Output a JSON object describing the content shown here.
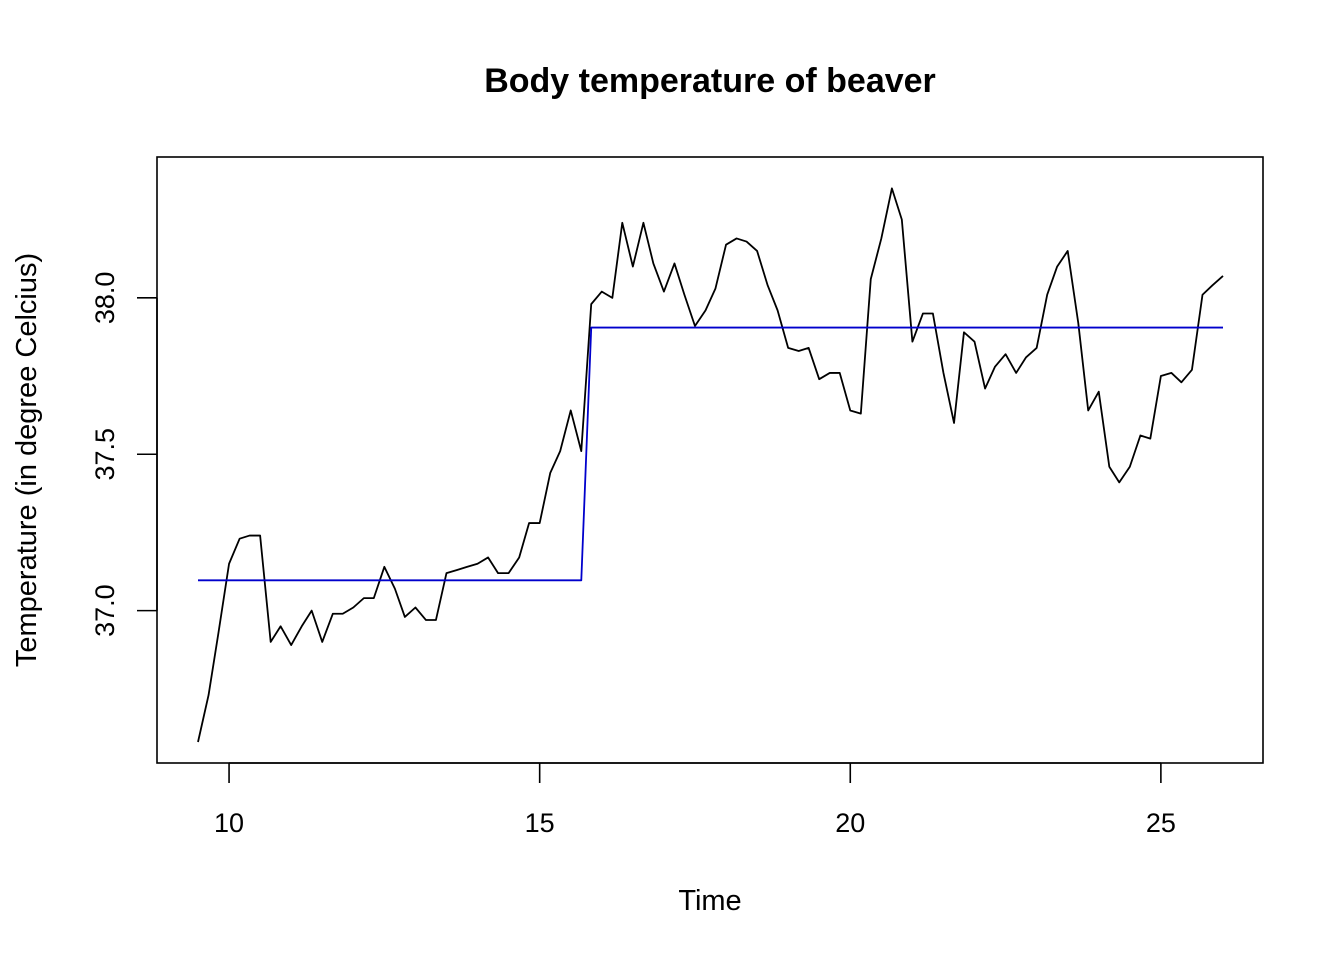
{
  "chart_data": {
    "type": "line",
    "title": "Body temperature of beaver",
    "xlabel": "Time",
    "ylabel": "Temperature (in degree Celcius)",
    "xlim": [
      9.5,
      26.0
    ],
    "ylim": [
      36.58,
      38.38
    ],
    "xticks": [
      10,
      15,
      20,
      25
    ],
    "xtick_labels": [
      "10",
      "15",
      "20",
      "25"
    ],
    "yticks": [
      37.0,
      37.5,
      38.0
    ],
    "ytick_labels": [
      "37.0",
      "37.5",
      "38.0"
    ],
    "grid": false,
    "legend": "none",
    "series": [
      {
        "color": "#000000",
        "x": [
          9.5,
          9.67,
          9.83,
          10.0,
          10.17,
          10.33,
          10.5,
          10.67,
          10.83,
          11.0,
          11.17,
          11.33,
          11.5,
          11.67,
          11.83,
          12.0,
          12.17,
          12.33,
          12.5,
          12.67,
          12.83,
          13.0,
          13.17,
          13.33,
          13.5,
          13.67,
          13.83,
          14.0,
          14.17,
          14.33,
          14.5,
          14.67,
          14.83,
          15.0,
          15.17,
          15.33,
          15.5,
          15.67,
          15.83,
          16.0,
          16.17,
          16.33,
          16.5,
          16.67,
          16.83,
          17.0,
          17.17,
          17.33,
          17.5,
          17.67,
          17.83,
          18.0,
          18.17,
          18.33,
          18.5,
          18.67,
          18.83,
          19.0,
          19.17,
          19.33,
          19.5,
          19.67,
          19.83,
          20.0,
          20.17,
          20.33,
          20.5,
          20.67,
          20.83,
          21.0,
          21.17,
          21.33,
          21.5,
          21.67,
          21.83,
          22.0,
          22.17,
          22.33,
          22.5,
          22.67,
          22.83,
          23.0,
          23.17,
          23.33,
          23.5,
          23.67,
          23.83,
          24.0,
          24.17,
          24.33,
          24.5,
          24.67,
          24.83,
          25.0,
          25.17,
          25.33,
          25.5,
          25.67,
          25.83,
          26.0
        ],
        "y": [
          36.58,
          36.73,
          36.93,
          37.15,
          37.23,
          37.24,
          37.24,
          36.9,
          36.95,
          36.89,
          36.95,
          37.0,
          36.9,
          36.99,
          36.99,
          37.01,
          37.04,
          37.04,
          37.14,
          37.07,
          36.98,
          37.01,
          36.97,
          36.97,
          37.12,
          37.13,
          37.14,
          37.15,
          37.17,
          37.12,
          37.12,
          37.17,
          37.28,
          37.28,
          37.44,
          37.51,
          37.64,
          37.51,
          37.98,
          38.02,
          38.0,
          38.24,
          38.1,
          38.24,
          38.11,
          38.02,
          38.11,
          38.01,
          37.91,
          37.96,
          38.03,
          38.17,
          38.19,
          38.18,
          38.15,
          38.04,
          37.96,
          37.84,
          37.83,
          37.84,
          37.74,
          37.76,
          37.76,
          37.64,
          37.63,
          38.06,
          38.19,
          38.35,
          38.25,
          37.86,
          37.95,
          37.95,
          37.76,
          37.6,
          37.89,
          37.86,
          37.71,
          37.78,
          37.82,
          37.76,
          37.81,
          37.84,
          38.01,
          38.1,
          38.15,
          37.92,
          37.64,
          37.7,
          37.46,
          37.41,
          37.46,
          37.56,
          37.55,
          37.75,
          37.76,
          37.73,
          37.77,
          38.01,
          38.04,
          38.07
        ]
      },
      {
        "color": "#0000cc",
        "x": [
          9.5,
          15.67,
          15.83,
          26.0
        ],
        "y": [
          37.097,
          37.097,
          37.905,
          37.905
        ]
      }
    ]
  }
}
